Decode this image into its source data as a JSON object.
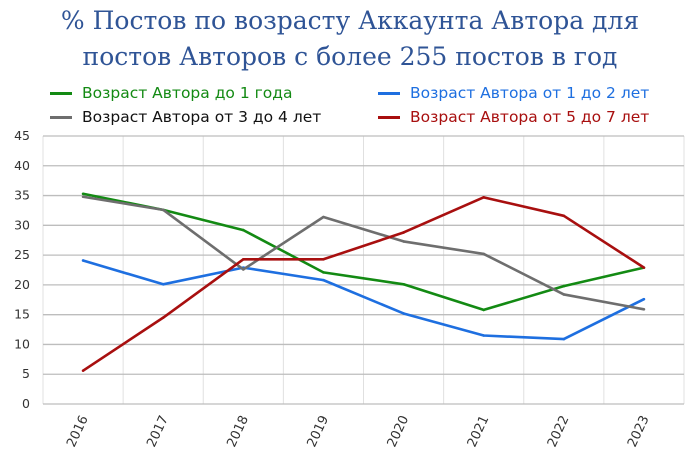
{
  "chart_data": {
    "type": "line",
    "title_line1": "% Постов по возрасту Аккаунта Автора для",
    "title_line2": "постов Авторов с более 255 постов в год",
    "categories": [
      "2016",
      "2017",
      "2018",
      "2019",
      "2020",
      "2021",
      "2022",
      "2023"
    ],
    "ylim": [
      0,
      45
    ],
    "yticks": [
      "0",
      "5",
      "10",
      "15",
      "20",
      "25",
      "30",
      "35",
      "40",
      "45"
    ],
    "grid": true,
    "legend_position": "top",
    "series": [
      {
        "name": "Возраст Автора до 1 года",
        "color": "#138a13",
        "text_color": "#138a13",
        "values": [
          35.3,
          32.6,
          29.2,
          22.1,
          20.1,
          15.8,
          19.8,
          22.9
        ]
      },
      {
        "name": "Возраст Автора от 1 до 2 лет",
        "color": "#1e6fe0",
        "text_color": "#1e6fe0",
        "values": [
          24.1,
          20.1,
          22.9,
          20.8,
          15.2,
          11.5,
          10.9,
          17.6
        ]
      },
      {
        "name": "Возраст Автора от 3 до 4 лет",
        "color": "#6e6e6e",
        "text_color": "#111111",
        "values": [
          34.8,
          32.6,
          22.6,
          31.4,
          27.3,
          25.2,
          18.4,
          15.9
        ]
      },
      {
        "name": "Возраст Автора от 5 до 7 лет",
        "color": "#a80f0f",
        "text_color": "#a80f0f",
        "values": [
          5.6,
          14.5,
          24.3,
          24.3,
          28.8,
          34.7,
          31.6,
          22.9
        ]
      }
    ]
  }
}
